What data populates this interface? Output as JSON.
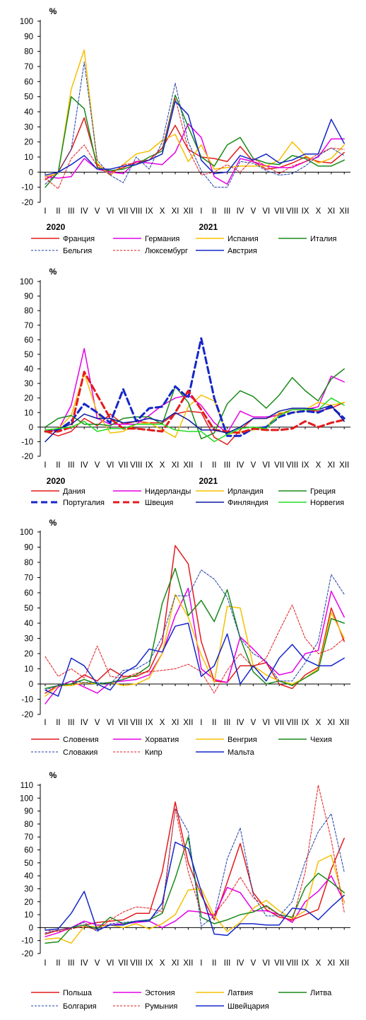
{
  "chart_data": [
    {
      "type": "line",
      "ylabel": "%",
      "ylim": [
        -20,
        100
      ],
      "yticks": [
        -20,
        -10,
        0,
        10,
        20,
        30,
        40,
        50,
        60,
        70,
        80,
        90,
        100
      ],
      "categories": [
        "I",
        "II",
        "III",
        "IV",
        "V",
        "VI",
        "VII",
        "VIII",
        "IX",
        "X",
        "XI",
        "XII",
        "I",
        "II",
        "III",
        "IV",
        "V",
        "VI",
        "VII",
        "VIII",
        "IX",
        "X",
        "XI",
        "XII"
      ],
      "years": [
        "2020",
        "2021"
      ],
      "grid": false,
      "legend_position": "bottom",
      "series": [
        {
          "name": "Франция",
          "color": "#e31a1c",
          "dash": "solid",
          "width": 1.5,
          "values": [
            -5,
            0,
            15,
            36,
            5,
            0,
            3,
            7,
            8,
            16,
            31,
            15,
            10,
            9,
            7,
            17,
            7,
            2,
            3,
            6,
            10,
            7,
            6,
            13
          ]
        },
        {
          "name": "Германия",
          "color": "#e600e6",
          "dash": "solid",
          "width": 1.5,
          "values": [
            -3,
            -4,
            -3,
            9,
            2,
            0,
            -1,
            7,
            6,
            5,
            13,
            32,
            23,
            -3,
            -8,
            9,
            7,
            4,
            3,
            3,
            7,
            10,
            22,
            22
          ]
        },
        {
          "name": "Испания",
          "color": "#f5c000",
          "dash": "solid",
          "width": 1.5,
          "values": [
            -3,
            -1,
            55,
            81,
            6,
            -2,
            5,
            12,
            14,
            21,
            25,
            7,
            18,
            2,
            3,
            4,
            4,
            4,
            8,
            20,
            11,
            6,
            9,
            18
          ]
        },
        {
          "name": "Италия",
          "color": "#1a8a1a",
          "dash": "solid",
          "width": 1.5,
          "values": [
            -10,
            0,
            50,
            42,
            3,
            1,
            2,
            5,
            10,
            14,
            51,
            30,
            10,
            4,
            18,
            23,
            9,
            6,
            5,
            11,
            9,
            4,
            4,
            8
          ]
        },
        {
          "name": "Бельгия",
          "color": "#1f3fa8",
          "dash": "dashed-fine",
          "width": 1.0,
          "values": [
            -8,
            0,
            15,
            73,
            8,
            -2,
            -7,
            10,
            2,
            20,
            59,
            20,
            1,
            -10,
            -10,
            7,
            6,
            1,
            -2,
            -1,
            4,
            11,
            16,
            11
          ]
        },
        {
          "name": "Люксембург",
          "color": "#e31a1c",
          "dash": "dashed-fine",
          "width": 1.0,
          "values": [
            -4,
            -11,
            9,
            18,
            4,
            -2,
            5,
            6,
            8,
            16,
            49,
            15,
            -2,
            0,
            5,
            0,
            9,
            4,
            -1,
            4,
            7,
            12,
            16,
            15
          ]
        },
        {
          "name": "Австрия",
          "color": "#1426c8",
          "dash": "solid",
          "width": 1.5,
          "values": [
            -2,
            0,
            5,
            11,
            2,
            2,
            4,
            5,
            8,
            12,
            47,
            38,
            8,
            -1,
            0,
            11,
            8,
            12,
            6,
            8,
            12,
            12,
            35,
            19
          ]
        }
      ]
    },
    {
      "type": "line",
      "ylabel": "%",
      "ylim": [
        -20,
        100
      ],
      "yticks": [
        -20,
        -10,
        0,
        10,
        20,
        30,
        40,
        50,
        60,
        70,
        80,
        90,
        100
      ],
      "categories": [
        "I",
        "II",
        "III",
        "IV",
        "V",
        "VI",
        "VII",
        "VIII",
        "IX",
        "X",
        "XI",
        "XII",
        "I",
        "II",
        "III",
        "IV",
        "V",
        "VI",
        "VII",
        "VIII",
        "IX",
        "X",
        "XI",
        "XII"
      ],
      "years": [
        "2020",
        "2021"
      ],
      "grid": false,
      "legend_position": "bottom",
      "series": [
        {
          "name": "Дания",
          "color": "#e31a1c",
          "dash": "solid",
          "width": 1.5,
          "values": [
            -3,
            -6,
            -3,
            6,
            1,
            9,
            2,
            4,
            3,
            3,
            9,
            11,
            10,
            -7,
            -12,
            -2,
            6,
            6,
            9,
            12,
            12,
            11,
            13,
            17
          ]
        },
        {
          "name": "Нидерланды",
          "color": "#e600e6",
          "dash": "solid",
          "width": 1.5,
          "values": [
            -3,
            -2,
            15,
            54,
            6,
            2,
            2,
            2,
            8,
            15,
            20,
            22,
            15,
            3,
            -4,
            11,
            7,
            7,
            8,
            12,
            12,
            14,
            35,
            31
          ]
        },
        {
          "name": "Ирландия",
          "color": "#f5c000",
          "dash": "solid",
          "width": 1.5,
          "values": [
            -3,
            -1,
            8,
            37,
            10,
            -4,
            -3,
            2,
            3,
            -2,
            -7,
            14,
            22,
            18,
            -5,
            -3,
            -2,
            0,
            10,
            10,
            12,
            17,
            15,
            17
          ]
        },
        {
          "name": "Греция",
          "color": "#1a8a1a",
          "dash": "solid",
          "width": 1.5,
          "values": [
            0,
            6,
            8,
            2,
            2,
            1,
            6,
            7,
            7,
            2,
            28,
            17,
            -8,
            -4,
            16,
            25,
            21,
            13,
            22,
            34,
            25,
            18,
            33,
            40
          ]
        },
        {
          "name": "Португалия",
          "color": "#1426c8",
          "dash": "dashed-bold",
          "width": 3.0,
          "values": [
            -3,
            -2,
            4,
            16,
            10,
            3,
            26,
            4,
            13,
            14,
            28,
            20,
            61,
            20,
            -6,
            -6,
            -1,
            0,
            7,
            10,
            11,
            10,
            14,
            6
          ]
        },
        {
          "name": "Швеция",
          "color": "#e31a1c",
          "dash": "dashed-bold",
          "width": 3.0,
          "values": [
            -3,
            -3,
            0,
            38,
            22,
            6,
            -1,
            -1,
            -2,
            -3,
            10,
            25,
            12,
            -2,
            -3,
            -4,
            -1,
            -2,
            -2,
            -1,
            4,
            0,
            3,
            5
          ]
        },
        {
          "name": "Финляндия",
          "color": "#0a1aa0",
          "dash": "solid",
          "width": 1.5,
          "values": [
            -10,
            -1,
            2,
            9,
            6,
            6,
            3,
            4,
            6,
            4,
            10,
            5,
            -2,
            -2,
            -4,
            0,
            6,
            6,
            11,
            13,
            13,
            12,
            15,
            4
          ]
        },
        {
          "name": "Норвегия",
          "color": "#22dd22",
          "dash": "solid",
          "width": 1.5,
          "values": [
            -2,
            -1,
            0,
            4,
            -3,
            -1,
            -1,
            2,
            2,
            2,
            -2,
            -3,
            -3,
            -10,
            -5,
            -1,
            0,
            -1,
            8,
            12,
            12,
            12,
            20,
            15
          ]
        }
      ]
    },
    {
      "type": "line",
      "ylabel": "%",
      "ylim": [
        -20,
        100
      ],
      "yticks": [
        -20,
        -10,
        0,
        10,
        20,
        30,
        40,
        50,
        60,
        70,
        80,
        90,
        100
      ],
      "categories": [
        "I",
        "II",
        "III",
        "IV",
        "V",
        "VI",
        "VII",
        "VIII",
        "IX",
        "X",
        "XI",
        "XII",
        "I",
        "II",
        "III",
        "IV",
        "V",
        "VI",
        "VII",
        "VIII",
        "IX",
        "X",
        "XI",
        "XII"
      ],
      "grid": false,
      "legend_position": "bottom",
      "series": [
        {
          "name": "Словения",
          "color": "#e31a1c",
          "dash": "solid",
          "width": 1.5,
          "values": [
            -6,
            -1,
            0,
            6,
            2,
            10,
            5,
            5,
            9,
            27,
            91,
            79,
            28,
            2,
            1,
            12,
            12,
            14,
            0,
            -3,
            6,
            11,
            50,
            28
          ]
        },
        {
          "name": "Хорватия",
          "color": "#e600e6",
          "dash": "solid",
          "width": 1.5,
          "values": [
            -13,
            -2,
            2,
            -2,
            -6,
            1,
            2,
            3,
            6,
            20,
            45,
            63,
            10,
            3,
            1,
            31,
            23,
            14,
            6,
            8,
            20,
            22,
            61,
            44
          ]
        },
        {
          "name": "Венгрия",
          "color": "#f5c000",
          "dash": "solid",
          "width": 1.5,
          "values": [
            -8,
            -1,
            -1,
            1,
            0,
            1,
            -1,
            0,
            4,
            20,
            59,
            44,
            19,
            1,
            51,
            50,
            12,
            6,
            2,
            0,
            4,
            10,
            47,
            30
          ]
        },
        {
          "name": "Чехия",
          "color": "#1a8a1a",
          "dash": "solid",
          "width": 1.5,
          "values": [
            -3,
            -1,
            0,
            3,
            0,
            1,
            3,
            6,
            12,
            53,
            76,
            45,
            55,
            41,
            62,
            30,
            8,
            0,
            2,
            -1,
            4,
            9,
            43,
            40
          ]
        },
        {
          "name": "Словакия",
          "color": "#1f3fa8",
          "dash": "dashed-fine",
          "width": 1.0,
          "values": [
            -4,
            -1,
            2,
            1,
            1,
            0,
            9,
            10,
            15,
            31,
            58,
            58,
            75,
            69,
            57,
            30,
            20,
            15,
            2,
            2,
            14,
            28,
            72,
            59
          ]
        },
        {
          "name": "Кипр",
          "color": "#e31a1c",
          "dash": "dashed-fine",
          "width": 1.0,
          "values": [
            18,
            5,
            10,
            4,
            25,
            5,
            4,
            7,
            8,
            9,
            10,
            13,
            8,
            -6,
            9,
            20,
            11,
            17,
            35,
            52,
            30,
            20,
            23,
            30
          ]
        },
        {
          "name": "Мальта",
          "color": "#1426c8",
          "dash": "solid",
          "width": 1.5,
          "values": [
            -4,
            -8,
            17,
            12,
            0,
            -4,
            7,
            12,
            23,
            21,
            38,
            40,
            5,
            12,
            33,
            0,
            12,
            2,
            17,
            26,
            16,
            12,
            12,
            17
          ]
        }
      ]
    },
    {
      "type": "line",
      "ylabel": "%",
      "ylim": [
        -20,
        110
      ],
      "yticks": [
        -20,
        -10,
        0,
        10,
        20,
        30,
        40,
        50,
        60,
        70,
        80,
        90,
        100,
        110
      ],
      "categories": [
        "I",
        "II",
        "III",
        "IV",
        "V",
        "VI",
        "VII",
        "VIII",
        "IX",
        "X",
        "XI",
        "XII",
        "I",
        "II",
        "III",
        "IV",
        "V",
        "VI",
        "VII",
        "VIII",
        "IX",
        "X",
        "XI",
        "XII"
      ],
      "grid": false,
      "legend_position": "bottom",
      "series": [
        {
          "name": "Польша",
          "color": "#e31a1c",
          "dash": "solid",
          "width": 1.5,
          "values": [
            -5,
            -2,
            0,
            2,
            4,
            5,
            6,
            11,
            11,
            43,
            97,
            50,
            25,
            6,
            35,
            65,
            27,
            14,
            8,
            6,
            10,
            14,
            45,
            69
          ]
        },
        {
          "name": "Эстония",
          "color": "#e600e6",
          "dash": "solid",
          "width": 1.5,
          "values": [
            -7,
            -4,
            0,
            5,
            2,
            2,
            3,
            4,
            5,
            0,
            5,
            13,
            12,
            9,
            31,
            27,
            13,
            13,
            10,
            4,
            20,
            28,
            40,
            20
          ]
        },
        {
          "name": "Латвия",
          "color": "#f5c000",
          "dash": "solid",
          "width": 1.5,
          "values": [
            -9,
            -8,
            -12,
            1,
            1,
            2,
            0,
            3,
            -1,
            3,
            10,
            29,
            30,
            9,
            -3,
            4,
            15,
            21,
            13,
            7,
            13,
            51,
            56,
            19
          ]
        },
        {
          "name": "Литва",
          "color": "#1a8a1a",
          "dash": "solid",
          "width": 1.5,
          "values": [
            -12,
            -11,
            0,
            2,
            -1,
            8,
            3,
            5,
            6,
            11,
            38,
            70,
            8,
            3,
            6,
            10,
            12,
            17,
            10,
            8,
            31,
            42,
            35,
            27
          ]
        },
        {
          "name": "Болгария",
          "color": "#1f3fa8",
          "dash": "dashed-fine",
          "width": 1.0,
          "values": [
            -4,
            -2,
            0,
            4,
            -3,
            3,
            4,
            5,
            6,
            15,
            92,
            74,
            1,
            9,
            53,
            77,
            25,
            9,
            9,
            20,
            51,
            74,
            88,
            43
          ]
        },
        {
          "name": "Румыния",
          "color": "#e31a1c",
          "dash": "dashed-fine",
          "width": 1.0,
          "values": [
            -2,
            -3,
            -1,
            1,
            -2,
            6,
            12,
            16,
            15,
            12,
            92,
            43,
            12,
            10,
            23,
            39,
            23,
            16,
            10,
            5,
            43,
            110,
            68,
            12
          ]
        },
        {
          "name": "Швейцария",
          "color": "#1426c8",
          "dash": "solid",
          "width": 1.5,
          "values": [
            -2,
            -1,
            11,
            28,
            -2,
            2,
            2,
            5,
            5,
            19,
            66,
            61,
            28,
            -5,
            -6,
            3,
            3,
            2,
            2,
            15,
            14,
            6,
            16,
            25
          ]
        }
      ]
    }
  ]
}
